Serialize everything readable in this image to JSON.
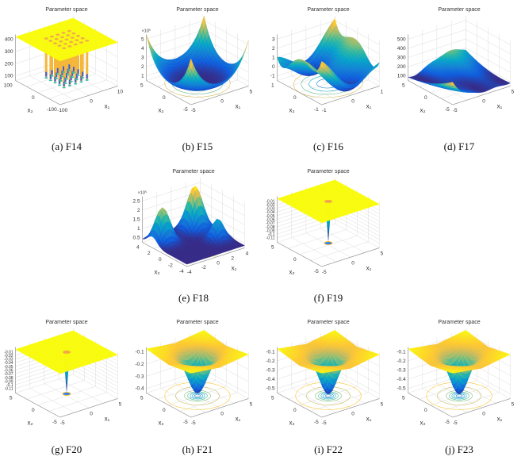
{
  "chart_data": [
    {
      "type": "surface",
      "caption": "(a) F14",
      "title": "Parameter space",
      "zlabel": "F14( x₁ , x₂ )",
      "xlabel": "x₁",
      "ylabel": "x₂",
      "xticks": [
        "-100",
        "0",
        "10"
      ],
      "yticks": [
        "-100",
        "0",
        "100"
      ],
      "zticks": [
        "100",
        "200",
        "300",
        "400"
      ],
      "exponent": ""
    },
    {
      "type": "surface",
      "caption": "(b) F15",
      "title": "Parameter space",
      "zlabel": "F15( x₁ , x₂ )",
      "xlabel": "x₁",
      "ylabel": "x₂",
      "xticks": [
        "-5",
        "0",
        "5"
      ],
      "yticks": [
        "-5",
        "0",
        "5"
      ],
      "zticks": [
        "1",
        "2",
        "3",
        "4",
        "5"
      ],
      "exponent": "×10⁵"
    },
    {
      "type": "surface",
      "caption": "(c) F16",
      "title": "Parameter space",
      "zlabel": "F16( x₁ , x₂ )",
      "xlabel": "x₁",
      "ylabel": "x₂",
      "xticks": [
        "-1",
        "0",
        "1"
      ],
      "yticks": [
        "-1",
        "0",
        "1"
      ],
      "zticks": [
        "-1",
        "0",
        "1",
        "2",
        "3"
      ],
      "exponent": ""
    },
    {
      "type": "surface",
      "caption": "(d) F17",
      "title": "Parameter space",
      "zlabel": "F17( x₁ , x₂ )",
      "xlabel": "x₁",
      "ylabel": "x₂",
      "xticks": [
        "-5",
        "0",
        "5"
      ],
      "yticks": [
        "-5",
        "0",
        "5"
      ],
      "zticks": [
        "100",
        "200",
        "300",
        "400",
        "500"
      ],
      "exponent": ""
    },
    {
      "type": "surface",
      "caption": "(e) F18",
      "title": "Parameter space",
      "zlabel": "F18( x₁ , x₂ )",
      "xlabel": "x₁",
      "ylabel": "x₂",
      "xticks": [
        "-4",
        "-2",
        "0",
        "2",
        "4"
      ],
      "yticks": [
        "-4",
        "-2",
        "0",
        "2",
        "4"
      ],
      "zticks": [
        "0.5",
        "1",
        "1.5",
        "2",
        "2.5"
      ],
      "exponent": "×10⁵"
    },
    {
      "type": "surface",
      "caption": "(f) F19",
      "title": "Parameter space",
      "zlabel": "F19( x₁ , x₂ )",
      "xlabel": "x₁",
      "ylabel": "x₂",
      "xticks": [
        "-5",
        "0",
        "5"
      ],
      "yticks": [
        "-5",
        "0",
        "5"
      ],
      "zticks": [
        "-0.11",
        "-0.1",
        "-0.09",
        "-0.08",
        "-0.07",
        "-0.06",
        "-0.05",
        "-0.04",
        "-0.03",
        "-0.02",
        "-0.01"
      ],
      "exponent": ""
    },
    {
      "type": "surface",
      "caption": "(g) F20",
      "title": "Parameter space",
      "zlabel": "F20( x₁ , x₂ )",
      "xlabel": "x₁",
      "ylabel": "x₂",
      "xticks": [
        "-5",
        "0",
        "5"
      ],
      "yticks": [
        "-5",
        "0",
        "5"
      ],
      "zticks": [
        "-0.11",
        "-0.1",
        "-0.09",
        "-0.08",
        "-0.07",
        "-0.06",
        "-0.05",
        "-0.04",
        "-0.03",
        "-0.02",
        "-0.01"
      ],
      "exponent": ""
    },
    {
      "type": "surface",
      "caption": "(h) F21",
      "title": "Parameter space",
      "zlabel": "F21( x₁ , x₂ )",
      "xlabel": "x₁",
      "ylabel": "x₂",
      "xticks": [
        "-5",
        "0",
        "5"
      ],
      "yticks": [
        "-5",
        "0",
        "5"
      ],
      "zticks": [
        "-0.4",
        "-0.3",
        "-0.2",
        "-0.1"
      ],
      "exponent": ""
    },
    {
      "type": "surface",
      "caption": "(i) F22",
      "title": "Parameter space",
      "zlabel": "F22( x₁ , x₂ )",
      "xlabel": "x₁",
      "ylabel": "x₂",
      "xticks": [
        "-5",
        "0",
        "5"
      ],
      "yticks": [
        "-5",
        "0",
        "5"
      ],
      "zticks": [
        "-0.5",
        "-0.4",
        "-0.3",
        "-0.2",
        "-0.1"
      ],
      "exponent": ""
    },
    {
      "type": "surface",
      "caption": "(j) F23",
      "title": "Parameter space",
      "zlabel": "F23( x₁ , x₂ )",
      "xlabel": "x₁",
      "ylabel": "x₂",
      "xticks": [
        "-5",
        "0",
        "5"
      ],
      "yticks": [
        "-5",
        "0",
        "5"
      ],
      "zticks": [
        "-0.5",
        "-0.4",
        "-0.3",
        "-0.2",
        "-0.1"
      ],
      "exponent": ""
    }
  ]
}
